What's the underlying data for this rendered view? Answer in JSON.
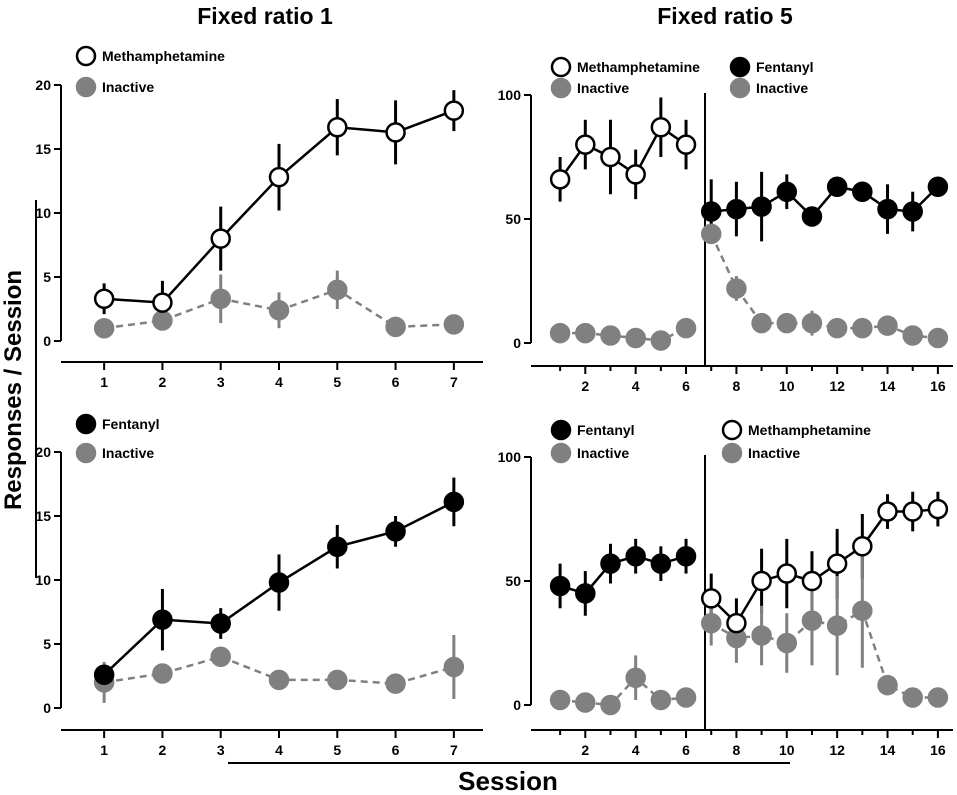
{
  "figure": {
    "column_titles": [
      "Fixed ratio 1",
      "Fixed ratio 5"
    ],
    "ylabel": "Responses / Session",
    "xlabel": "Session"
  },
  "colors": {
    "filled": "#000000",
    "open": "#ffffff",
    "inactive": "#808080",
    "line": "#000000",
    "dash": "#808080"
  },
  "chart_data": [
    {
      "id": "fr1-meth",
      "type": "line",
      "title": "Fixed ratio 1",
      "xlabel": "Session",
      "ylabel": "Responses / Session",
      "xlim": [
        0.5,
        7.5
      ],
      "ylim": [
        0,
        20
      ],
      "xticks": [
        1,
        2,
        3,
        4,
        5,
        6,
        7
      ],
      "yticks": [
        0,
        5,
        10,
        15,
        20
      ],
      "series": [
        {
          "name": "Methamphetamine",
          "style": "open",
          "x": [
            1,
            2,
            3,
            4,
            5,
            6,
            7
          ],
          "values": [
            3.3,
            3.0,
            8.0,
            12.8,
            16.7,
            16.3,
            18.0
          ],
          "err": [
            1.2,
            1.7,
            2.5,
            2.6,
            2.2,
            2.5,
            1.6
          ]
        },
        {
          "name": "Inactive",
          "style": "inactive",
          "x": [
            1,
            2,
            3,
            4,
            5,
            6,
            7
          ],
          "values": [
            1.0,
            1.6,
            3.3,
            2.4,
            4.0,
            1.1,
            1.3
          ],
          "err": [
            0.4,
            0.5,
            1.9,
            1.4,
            1.5,
            0.3,
            0.4
          ]
        }
      ]
    },
    {
      "id": "fr1-fent",
      "type": "line",
      "xlabel": "Session",
      "ylabel": "Responses / Session",
      "xlim": [
        0.5,
        7.5
      ],
      "ylim": [
        0,
        20
      ],
      "xticks": [
        1,
        2,
        3,
        4,
        5,
        6,
        7
      ],
      "yticks": [
        0,
        5,
        10,
        15,
        20
      ],
      "series": [
        {
          "name": "Fentanyl",
          "style": "filled",
          "x": [
            1,
            2,
            3,
            4,
            5,
            6,
            7
          ],
          "values": [
            2.6,
            6.9,
            6.6,
            9.8,
            12.6,
            13.8,
            16.1
          ],
          "err": [
            0.8,
            2.4,
            1.2,
            2.2,
            1.7,
            1.2,
            1.9
          ]
        },
        {
          "name": "Inactive",
          "style": "inactive",
          "x": [
            1,
            2,
            3,
            4,
            5,
            6,
            7
          ],
          "values": [
            2.0,
            2.7,
            4.0,
            2.2,
            2.2,
            1.9,
            3.2
          ],
          "err": [
            1.6,
            0.5,
            0.5,
            0.6,
            0.5,
            0.6,
            2.5
          ]
        }
      ]
    },
    {
      "id": "fr5-meth-fent",
      "type": "line",
      "title": "Fixed ratio 5",
      "xlabel": "Session",
      "ylabel": "Responses / Session",
      "xlim": [
        0.4,
        16.6
      ],
      "ylim": [
        0,
        100
      ],
      "xticks": [
        2,
        4,
        6,
        8,
        10,
        12,
        14,
        16
      ],
      "yticks": [
        0,
        50,
        100
      ],
      "phase_divider": 6.5,
      "series": [
        {
          "name": "Methamphetamine",
          "style": "open",
          "x": [
            1,
            2,
            3,
            4,
            5,
            6
          ],
          "values": [
            66,
            80,
            75,
            68,
            87,
            80
          ],
          "err": [
            9,
            10,
            15,
            10,
            12,
            10
          ]
        },
        {
          "name": "Inactive",
          "style": "inactive",
          "x": [
            1,
            2,
            3,
            4,
            5,
            6
          ],
          "values": [
            4,
            4,
            3,
            2,
            1,
            6
          ],
          "err": [
            1,
            1,
            1,
            1,
            1,
            2
          ]
        },
        {
          "name": "Fentanyl",
          "style": "filled",
          "x": [
            7,
            8,
            9,
            10,
            11,
            12,
            13,
            14,
            15,
            16
          ],
          "values": [
            53,
            54,
            55,
            61,
            51,
            63,
            61,
            54,
            53,
            63
          ],
          "err": [
            13,
            11,
            14,
            7,
            2,
            2,
            4,
            10,
            8,
            3
          ]
        },
        {
          "name": "Inactive",
          "style": "inactive",
          "x": [
            7,
            8,
            9,
            10,
            11,
            12,
            13,
            14,
            15,
            16
          ],
          "values": [
            44,
            22,
            8,
            8,
            8,
            6,
            6,
            7,
            3,
            2
          ],
          "err": [
            2,
            5,
            3,
            2,
            5,
            2,
            2,
            2,
            1,
            1
          ]
        }
      ]
    },
    {
      "id": "fr5-fent-meth",
      "type": "line",
      "xlabel": "Session",
      "ylabel": "Responses / Session",
      "xlim": [
        0.4,
        16.6
      ],
      "ylim": [
        0,
        100
      ],
      "xticks": [
        2,
        4,
        6,
        8,
        10,
        12,
        14,
        16
      ],
      "yticks": [
        0,
        50,
        100
      ],
      "phase_divider": 6.5,
      "series": [
        {
          "name": "Fentanyl",
          "style": "filled",
          "x": [
            1,
            2,
            3,
            4,
            5,
            6
          ],
          "values": [
            48,
            45,
            57,
            60,
            57,
            60
          ],
          "err": [
            9,
            9,
            8,
            7,
            7,
            7
          ]
        },
        {
          "name": "Inactive",
          "style": "inactive",
          "x": [
            1,
            2,
            3,
            4,
            5,
            6
          ],
          "values": [
            2,
            1,
            0,
            11,
            2,
            3
          ],
          "err": [
            1,
            1,
            1,
            9,
            1,
            1
          ]
        },
        {
          "name": "Methamphetamine",
          "style": "open",
          "x": [
            7,
            8,
            9,
            10,
            11,
            12,
            13,
            14,
            15,
            16
          ],
          "values": [
            43,
            33,
            50,
            53,
            50,
            57,
            64,
            78,
            78,
            79
          ],
          "err": [
            10,
            10,
            13,
            14,
            12,
            14,
            13,
            7,
            8,
            7
          ]
        },
        {
          "name": "Inactive",
          "style": "inactive",
          "x": [
            7,
            8,
            9,
            10,
            11,
            12,
            13,
            14,
            15,
            16
          ],
          "values": [
            33,
            27,
            28,
            25,
            34,
            32,
            38,
            8,
            3,
            3
          ],
          "err": [
            9,
            10,
            12,
            12,
            18,
            20,
            23,
            2,
            1,
            1
          ]
        }
      ]
    }
  ],
  "legends": [
    {
      "chart": "fr1-meth",
      "entries": [
        {
          "label": "Methamphetamine",
          "style": "open"
        },
        {
          "label": "Inactive",
          "style": "inactive"
        }
      ]
    },
    {
      "chart": "fr1-fent",
      "entries": [
        {
          "label": "Fentanyl",
          "style": "filled"
        },
        {
          "label": "Inactive",
          "style": "inactive"
        }
      ]
    },
    {
      "chart": "fr5-meth-fent",
      "entries": [
        {
          "label": "Methamphetamine",
          "style": "open"
        },
        {
          "label": "Inactive",
          "style": "inactive"
        },
        {
          "label": "Fentanyl",
          "style": "filled"
        },
        {
          "label": "Inactive",
          "style": "inactive"
        }
      ]
    },
    {
      "chart": "fr5-fent-meth",
      "entries": [
        {
          "label": "Fentanyl",
          "style": "filled"
        },
        {
          "label": "Inactive",
          "style": "inactive"
        },
        {
          "label": "Methamphetamine",
          "style": "open"
        },
        {
          "label": "Inactive",
          "style": "inactive"
        }
      ]
    }
  ]
}
